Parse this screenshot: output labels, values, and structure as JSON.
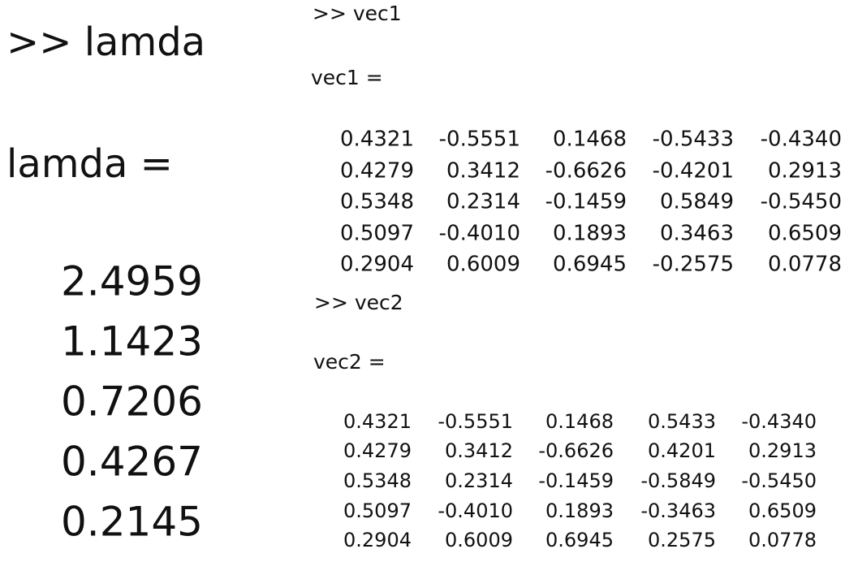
{
  "lamda": {
    "prompt": ">> lamda",
    "label": "lamda =",
    "values": [
      "2.4959",
      "1.1423",
      "0.7206",
      "0.4267",
      "0.2145"
    ]
  },
  "vec1": {
    "prompt": ">> vec1",
    "label": "vec1 =",
    "rows": [
      [
        "0.4321",
        "-0.5551",
        "0.1468",
        "-0.5433",
        "-0.4340"
      ],
      [
        "0.4279",
        "0.3412",
        "-0.6626",
        "-0.4201",
        "0.2913"
      ],
      [
        "0.5348",
        "0.2314",
        "-0.1459",
        "0.5849",
        "-0.5450"
      ],
      [
        "0.5097",
        "-0.4010",
        "0.1893",
        "0.3463",
        "0.6509"
      ],
      [
        "0.2904",
        "0.6009",
        "0.6945",
        "-0.2575",
        "0.0778"
      ]
    ]
  },
  "vec2": {
    "prompt": ">> vec2",
    "label": "vec2 =",
    "rows": [
      [
        "0.4321",
        "-0.5551",
        "0.1468",
        "0.5433",
        "-0.4340"
      ],
      [
        "0.4279",
        "0.3412",
        "-0.6626",
        "0.4201",
        "0.2913"
      ],
      [
        "0.5348",
        "0.2314",
        "-0.1459",
        "-0.5849",
        "-0.5450"
      ],
      [
        "0.5097",
        "-0.4010",
        "0.1893",
        "-0.3463",
        "0.6509"
      ],
      [
        "0.2904",
        "0.6009",
        "0.6945",
        "0.2575",
        "0.0778"
      ]
    ]
  }
}
